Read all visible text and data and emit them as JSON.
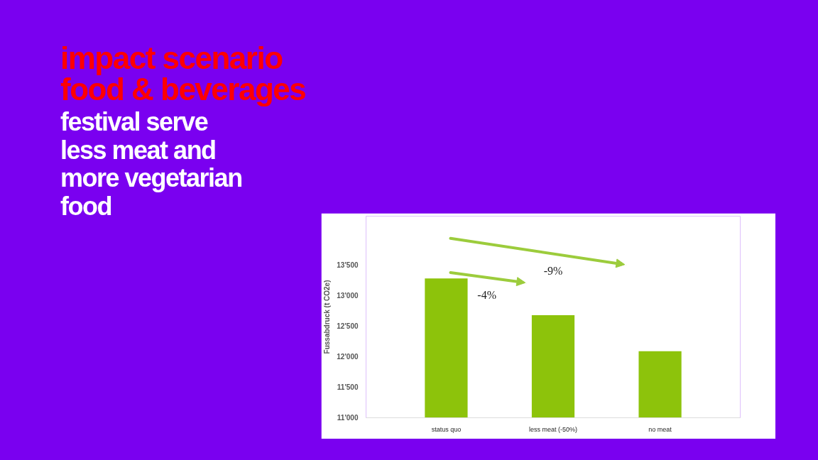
{
  "chart_data": {
    "type": "bar",
    "title": "impact scenario\nfood & beverages",
    "subtitle": "festival serve\nless meat and\nmore vegetarian\nfood",
    "ylabel": "Fussabdruck (t CO2e)",
    "categories": [
      "status quo",
      "less meat (-50%)",
      "no meat"
    ],
    "values": [
      13280,
      12680,
      12090
    ],
    "color": "#8dc30b",
    "ylim": [
      11000,
      14300
    ],
    "yticks": [
      {
        "value": 11000,
        "label": "11'000"
      },
      {
        "value": 11500,
        "label": "11'500"
      },
      {
        "value": 12000,
        "label": "12'000"
      },
      {
        "value": 12500,
        "label": "12'500"
      },
      {
        "value": 13000,
        "label": "13'000"
      },
      {
        "value": 13500,
        "label": "13'500"
      }
    ],
    "annotations": [
      "-4%",
      "-9%"
    ]
  }
}
